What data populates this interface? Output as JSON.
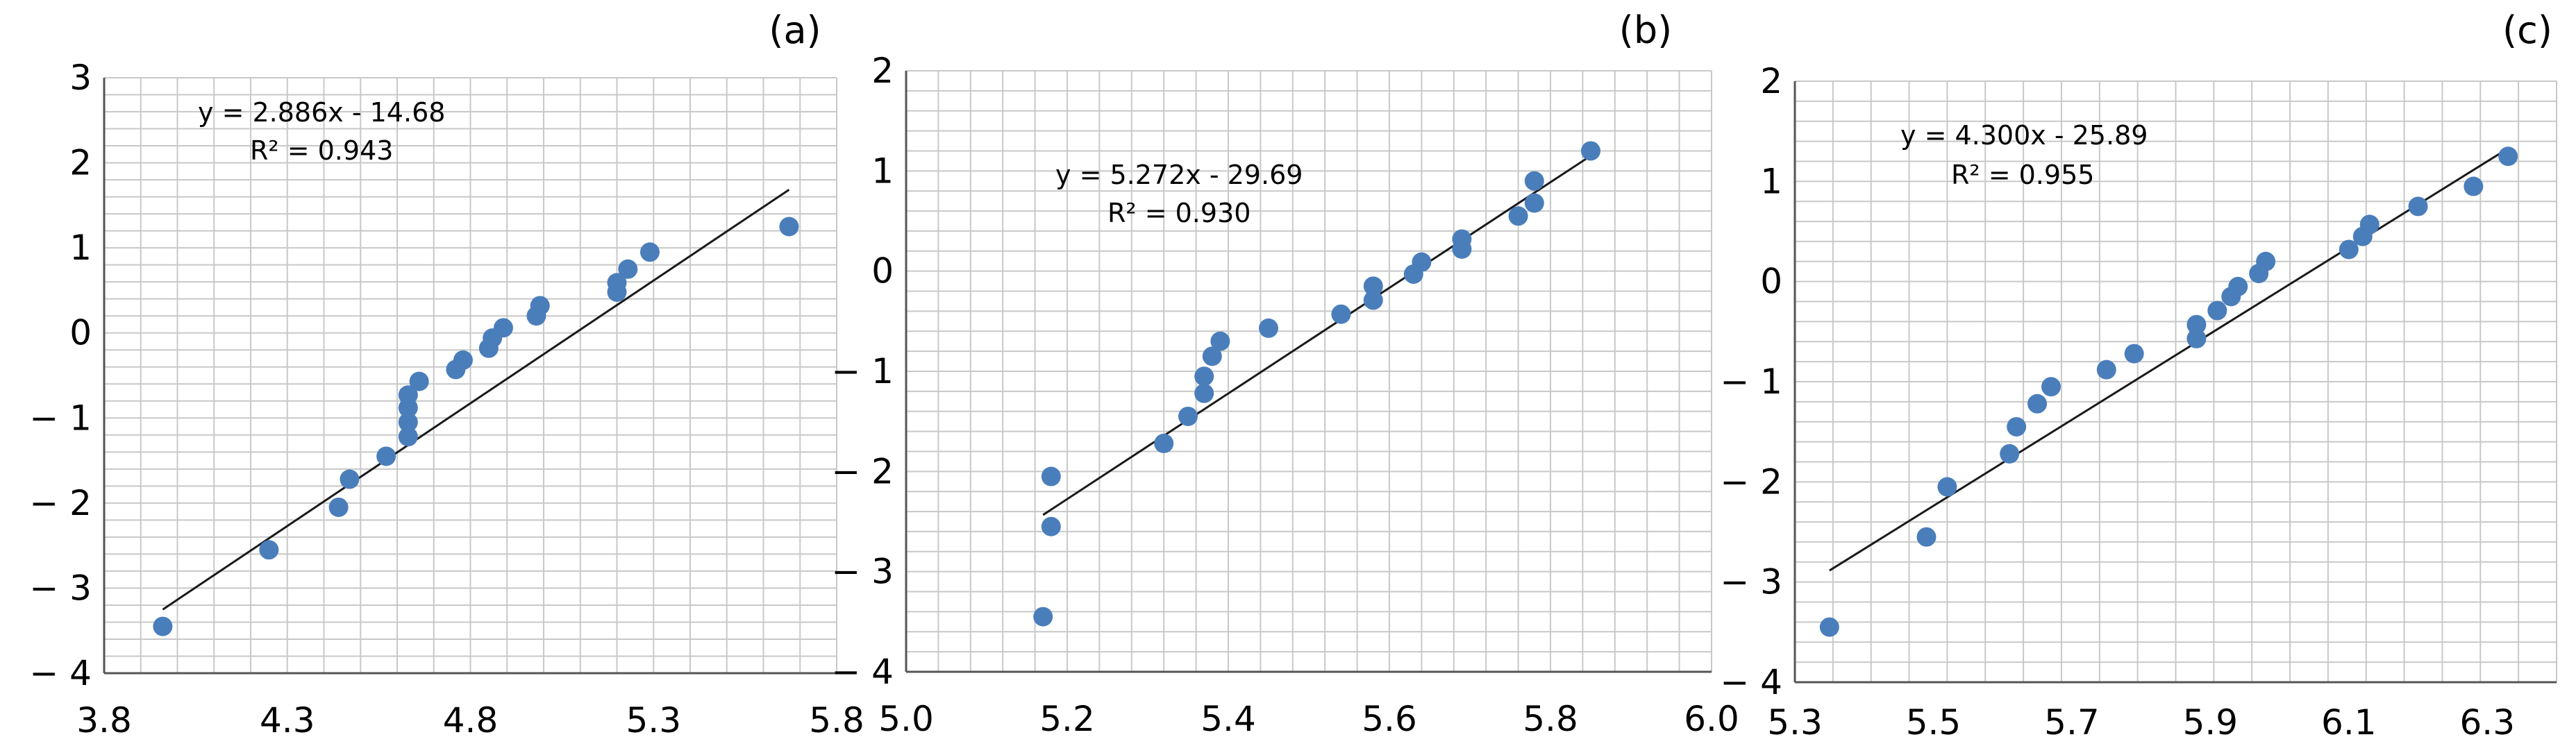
{
  "chart_data": [
    {
      "type": "scatter",
      "panel_label": "(a)",
      "equation": "y = 2.886x - 14.68",
      "r2": "R² = 0.943",
      "trendline": {
        "slope": 2.886,
        "intercept": -14.68
      },
      "xlim": [
        3.8,
        5.8
      ],
      "ylim": [
        -4,
        3
      ],
      "xticks": [
        3.8,
        4.3,
        4.8,
        5.3,
        5.8
      ],
      "xtick_labels": [
        "3.8",
        "4.3",
        "4.8",
        "5.3",
        "5.8"
      ],
      "yticks": [
        -4,
        -3,
        -2,
        -1,
        0,
        1,
        2,
        3
      ],
      "ytick_labels": [
        "− 4",
        "− 3",
        "− 2",
        "− 1",
        "0",
        "1",
        "2",
        "3"
      ],
      "grid": true,
      "points": [
        [
          3.96,
          -3.45
        ],
        [
          4.25,
          -2.55
        ],
        [
          4.44,
          -2.05
        ],
        [
          4.47,
          -1.72
        ],
        [
          4.57,
          -1.45
        ],
        [
          4.63,
          -1.22
        ],
        [
          4.63,
          -1.05
        ],
        [
          4.63,
          -0.88
        ],
        [
          4.63,
          -0.73
        ],
        [
          4.66,
          -0.57
        ],
        [
          4.76,
          -0.43
        ],
        [
          4.78,
          -0.32
        ],
        [
          4.85,
          -0.18
        ],
        [
          4.86,
          -0.06
        ],
        [
          4.89,
          0.06
        ],
        [
          4.98,
          0.2
        ],
        [
          4.99,
          0.32
        ],
        [
          5.2,
          0.48
        ],
        [
          5.2,
          0.59
        ],
        [
          5.23,
          0.75
        ],
        [
          5.29,
          0.95
        ],
        [
          5.67,
          1.25
        ]
      ]
    },
    {
      "type": "scatter",
      "panel_label": "(b)",
      "equation": "y = 5.272x - 29.69",
      "r2": "R² = 0.930",
      "trendline": {
        "slope": 5.272,
        "intercept": -29.69
      },
      "xlim": [
        5.0,
        6.0
      ],
      "ylim": [
        -4,
        2
      ],
      "xticks": [
        5.0,
        5.2,
        5.4,
        5.6,
        5.8,
        6.0
      ],
      "xtick_labels": [
        "5.0",
        "5.2",
        "5.4",
        "5.6",
        "5.8",
        "6.0"
      ],
      "yticks": [
        -4,
        -3,
        -2,
        -1,
        0,
        1,
        2
      ],
      "ytick_labels": [
        "− 4",
        "− 3",
        "− 2",
        "− 1",
        "0",
        "1",
        "2"
      ],
      "grid": true,
      "points": [
        [
          5.17,
          -3.45
        ],
        [
          5.18,
          -2.05
        ],
        [
          5.18,
          -2.55
        ],
        [
          5.32,
          -1.72
        ],
        [
          5.35,
          -1.45
        ],
        [
          5.37,
          -1.22
        ],
        [
          5.37,
          -1.05
        ],
        [
          5.38,
          -0.85
        ],
        [
          5.39,
          -0.7
        ],
        [
          5.45,
          -0.57
        ],
        [
          5.54,
          -0.43
        ],
        [
          5.58,
          -0.29
        ],
        [
          5.58,
          -0.15
        ],
        [
          5.63,
          -0.03
        ],
        [
          5.64,
          0.09
        ],
        [
          5.69,
          0.22
        ],
        [
          5.69,
          0.32
        ],
        [
          5.76,
          0.55
        ],
        [
          5.78,
          0.68
        ],
        [
          5.78,
          0.9
        ],
        [
          5.85,
          1.2
        ]
      ]
    },
    {
      "type": "scatter",
      "panel_label": "(c)",
      "equation": "y = 4.300x - 25.89",
      "r2": "R² = 0.955",
      "trendline": {
        "slope": 4.3,
        "intercept": -25.89
      },
      "xlim": [
        5.3,
        6.4
      ],
      "ylim": [
        -4,
        2
      ],
      "xticks": [
        5.3,
        5.5,
        5.7,
        5.9,
        6.1,
        6.3
      ],
      "xtick_labels": [
        "5.3",
        "5.5",
        "5.7",
        "5.9",
        "6.1",
        "6.3"
      ],
      "yticks": [
        -4,
        -3,
        -2,
        -1,
        0,
        1,
        2
      ],
      "ytick_labels": [
        "− 4",
        "− 3",
        "− 2",
        "− 1",
        "0",
        "1",
        "2"
      ],
      "grid": true,
      "points": [
        [
          5.35,
          -3.45
        ],
        [
          5.49,
          -2.55
        ],
        [
          5.52,
          -2.05
        ],
        [
          5.61,
          -1.72
        ],
        [
          5.62,
          -1.45
        ],
        [
          5.65,
          -1.22
        ],
        [
          5.67,
          -1.05
        ],
        [
          5.75,
          -0.88
        ],
        [
          5.79,
          -0.72
        ],
        [
          5.88,
          -0.57
        ],
        [
          5.88,
          -0.43
        ],
        [
          5.91,
          -0.29
        ],
        [
          5.93,
          -0.15
        ],
        [
          5.94,
          -0.05
        ],
        [
          5.97,
          0.08
        ],
        [
          5.98,
          0.2
        ],
        [
          6.1,
          0.32
        ],
        [
          6.12,
          0.45
        ],
        [
          6.13,
          0.57
        ],
        [
          6.2,
          0.75
        ],
        [
          6.28,
          0.95
        ],
        [
          6.33,
          1.25
        ]
      ]
    }
  ]
}
